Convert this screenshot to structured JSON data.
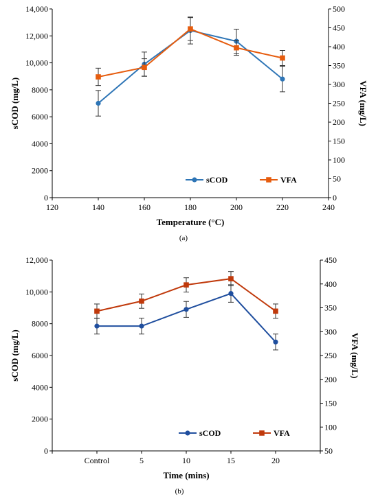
{
  "chart_data": [
    {
      "type": "line",
      "caption": "(a)",
      "xlabel": "Temperature (°C)",
      "ylabel": "sCOD (mg/L)",
      "y2label": "VFA (mg/L)",
      "xlim": [
        120,
        240
      ],
      "ylim": [
        0,
        14000
      ],
      "y2lim": [
        0,
        500
      ],
      "x_ticks": [
        120,
        140,
        160,
        180,
        200,
        220,
        240
      ],
      "x_tick_labels": [
        "120",
        "140",
        "160",
        "180",
        "200",
        "220",
        "240"
      ],
      "y_ticks": [
        0,
        2000,
        4000,
        6000,
        8000,
        10000,
        12000,
        14000
      ],
      "y_tick_labels": [
        "0",
        "2000",
        "4000",
        "6000",
        "8000",
        "10,000",
        "12,000",
        "14,000"
      ],
      "y2_ticks": [
        0,
        50,
        100,
        150,
        200,
        250,
        300,
        350,
        400,
        450,
        500
      ],
      "y2_tick_labels": [
        "0",
        "50",
        "100",
        "150",
        "200",
        "250",
        "300",
        "350",
        "400",
        "450",
        "500"
      ],
      "grid": false,
      "legend_position": "bottom-right",
      "series": [
        {
          "name": "sCOD",
          "axis": "left",
          "color": "#2e75b6",
          "marker": "circle",
          "x": [
            140,
            160,
            180,
            200,
            220
          ],
          "values": [
            7000,
            9900,
            12400,
            11600,
            8800
          ],
          "errors": [
            950,
            900,
            1000,
            900,
            950
          ]
        },
        {
          "name": "VFA",
          "axis": "right",
          "color": "#e65c0e",
          "marker": "square",
          "x": [
            140,
            160,
            180,
            200,
            220
          ],
          "values": [
            320,
            345,
            447,
            397,
            370
          ],
          "errors": [
            23,
            23,
            30,
            20,
            20
          ]
        }
      ]
    },
    {
      "type": "line",
      "caption": "(b)",
      "xlabel": "Time (mins)",
      "ylabel": "sCOD (mg/L)",
      "y2label": "VFA (mg/L)",
      "ylim": [
        0,
        12000
      ],
      "y2lim": [
        50,
        450
      ],
      "categories": [
        "Control",
        "5",
        "10",
        "15",
        "20"
      ],
      "y_ticks": [
        0,
        2000,
        4000,
        6000,
        8000,
        10000,
        12000
      ],
      "y_tick_labels": [
        "0",
        "2000",
        "4000",
        "6000",
        "8000",
        "10,000",
        "12,000"
      ],
      "y2_ticks": [
        50,
        100,
        150,
        200,
        250,
        300,
        350,
        400,
        450
      ],
      "y2_tick_labels": [
        "50",
        "100",
        "150",
        "200",
        "250",
        "300",
        "350",
        "400",
        "450"
      ],
      "grid": false,
      "legend_position": "bottom-right",
      "series": [
        {
          "name": "sCOD",
          "axis": "left",
          "color": "#1f4e9e",
          "marker": "circle",
          "values": [
            7850,
            7850,
            8900,
            9900,
            6850
          ],
          "errors": [
            500,
            500,
            500,
            550,
            500
          ]
        },
        {
          "name": "VFA",
          "axis": "right",
          "color": "#c0390b",
          "marker": "square",
          "values": [
            343,
            364,
            398,
            411,
            343
          ],
          "errors": [
            15,
            15,
            15,
            15,
            15
          ]
        }
      ]
    }
  ]
}
